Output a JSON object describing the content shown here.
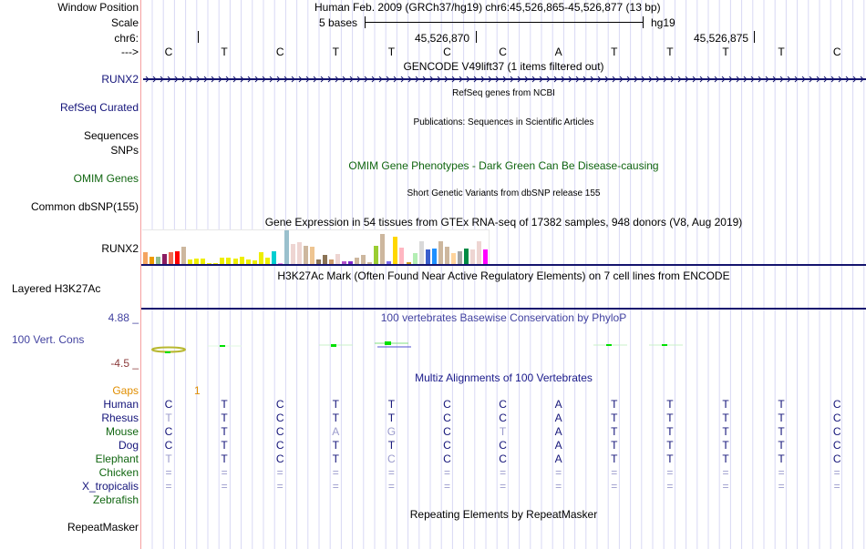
{
  "header": {
    "window_position_label": "Window Position",
    "window_position_value": "Human Feb. 2009 (GRCh37/hg19)   chr6:45,526,865-45,526,877 (13 bp)",
    "scale_label": "Scale",
    "scale_text": "5 bases",
    "scale_assembly": "hg19",
    "chrom_label": "chr6:",
    "coord_ticks": [
      "45,526,870",
      "45,526,875"
    ],
    "strand_label": "--->",
    "bases": [
      "C",
      "T",
      "C",
      "T",
      "T",
      "C",
      "C",
      "A",
      "T",
      "T",
      "T",
      "T",
      "C"
    ]
  },
  "tracks": {
    "gencode": {
      "title": "GENCODE V49lift37 (1 items filtered out)",
      "gene_label": "RUNX2"
    },
    "refseq": {
      "label": "RefSeq Curated",
      "title": "RefSeq genes from NCBI"
    },
    "publications": {
      "label_line1": "Sequences",
      "title": "Publications: Sequences in Scientific Articles"
    },
    "snps": {
      "label": "SNPs"
    },
    "omim": {
      "label": "OMIM Genes",
      "title": "OMIM Gene Phenotypes - Dark Green Can Be Disease-causing"
    },
    "dbsnp": {
      "label": "Common dbSNP(155)",
      "title": "Short Genetic Variants from dbSNP release 155"
    },
    "gtex": {
      "label": "RUNX2",
      "title": "Gene Expression in 54 tissues from GTEx RNA-seq of 17382 samples, 948 donors (V8, Aug 2019)",
      "bars": [
        {
          "color": "#f4a460",
          "v": 0.35
        },
        {
          "color": "#ee9a00",
          "v": 0.22
        },
        {
          "color": "#8fbc8f",
          "v": 0.22
        },
        {
          "color": "#8b1c62",
          "v": 0.3
        },
        {
          "color": "#ee6a50",
          "v": 0.35
        },
        {
          "color": "#ff0000",
          "v": 0.38
        },
        {
          "color": "#cdb79e",
          "v": 0.5
        },
        {
          "color": "#eeee00",
          "v": 0.14
        },
        {
          "color": "#eeee00",
          "v": 0.17
        },
        {
          "color": "#eeee00",
          "v": 0.17
        },
        {
          "color": "#eeee00",
          "v": 0.04
        },
        {
          "color": "#eeee00",
          "v": 0.04
        },
        {
          "color": "#eeee00",
          "v": 0.19
        },
        {
          "color": "#eeee00",
          "v": 0.19
        },
        {
          "color": "#eeee00",
          "v": 0.17
        },
        {
          "color": "#eeee00",
          "v": 0.22
        },
        {
          "color": "#eeee00",
          "v": 0.14
        },
        {
          "color": "#eeee00",
          "v": 0.11
        },
        {
          "color": "#eeee00",
          "v": 0.36
        },
        {
          "color": "#eeee00",
          "v": 0.19
        },
        {
          "color": "#00ced1",
          "v": 0.38
        },
        {
          "color": "#ee82ee",
          "v": 0.03
        },
        {
          "color": "#9ac0cd",
          "v": 1.0
        },
        {
          "color": "#eed5d2",
          "v": 0.6
        },
        {
          "color": "#eed5d2",
          "v": 0.65
        },
        {
          "color": "#cdb79e",
          "v": 0.54
        },
        {
          "color": "#eec591",
          "v": 0.52
        },
        {
          "color": "#8b7355",
          "v": 0.14
        },
        {
          "color": "#8b7355",
          "v": 0.26
        },
        {
          "color": "#cd9b6a",
          "v": 0.14
        },
        {
          "color": "#eed5d2",
          "v": 0.29
        },
        {
          "color": "#b452cd",
          "v": 0.08
        },
        {
          "color": "#7d26cd",
          "v": 0.08
        },
        {
          "color": "#cdb79e",
          "v": 0.19
        },
        {
          "color": "#cdb79e",
          "v": 0.27
        },
        {
          "color": "#cdb79e",
          "v": 0.05
        },
        {
          "color": "#9acd32",
          "v": 0.54
        },
        {
          "color": "#cdb79e",
          "v": 0.89
        },
        {
          "color": "#7a67ee",
          "v": 0.08
        },
        {
          "color": "#ffd700",
          "v": 0.81
        },
        {
          "color": "#ffb6c1",
          "v": 0.48
        },
        {
          "color": "#cd9b1d",
          "v": 0.05
        },
        {
          "color": "#b4eeb4",
          "v": 0.33
        },
        {
          "color": "#d9d9d9",
          "v": 0.68
        },
        {
          "color": "#3a5fcd",
          "v": 0.44
        },
        {
          "color": "#1e90ff",
          "v": 0.46
        },
        {
          "color": "#cdb79e",
          "v": 0.68
        },
        {
          "color": "#cdb79e",
          "v": 0.51
        },
        {
          "color": "#ffd39b",
          "v": 0.33
        },
        {
          "color": "#a6a6a6",
          "v": 0.38
        },
        {
          "color": "#008b45",
          "v": 0.45
        },
        {
          "color": "#eed5d2",
          "v": 0.43
        },
        {
          "color": "#eed5d2",
          "v": 0.68
        },
        {
          "color": "#ff00ff",
          "v": 0.43
        }
      ]
    },
    "h3k27ac": {
      "label": "Layered H3K27Ac",
      "title": "H3K27Ac Mark (Often Found Near Active Regulatory Elements) on 7 cell lines from ENCODE"
    },
    "cons": {
      "label": "100 Vert. Cons",
      "ymax": "4.88 _",
      "ymin": "-4.5 _",
      "title": "100 vertebrates Basewise Conservation by PhyloP"
    },
    "multiz": {
      "title": "Multiz Alignments of 100 Vertebrates",
      "gaps_label": "Gaps",
      "gaps_value": "1",
      "species": [
        {
          "name": "Human",
          "color": "navy",
          "seq": [
            "C",
            "T",
            "C",
            "T",
            "T",
            "C",
            "C",
            "A",
            "T",
            "T",
            "T",
            "T",
            "C"
          ]
        },
        {
          "name": "Rhesus",
          "color": "navy",
          "seq": [
            "T",
            "T",
            "C",
            "T",
            "T",
            "C",
            "C",
            "A",
            "T",
            "T",
            "T",
            "T",
            "C"
          ]
        },
        {
          "name": "Mouse",
          "color": "green",
          "seq": [
            "C",
            "T",
            "C",
            "A",
            "G",
            "C",
            "T",
            "A",
            "T",
            "T",
            "T",
            "T",
            "C"
          ]
        },
        {
          "name": "Dog",
          "color": "navy",
          "seq": [
            "C",
            "T",
            "C",
            "T",
            "T",
            "C",
            "C",
            "A",
            "T",
            "T",
            "T",
            "T",
            "C"
          ]
        },
        {
          "name": "Elephant",
          "color": "green",
          "seq": [
            "T",
            "T",
            "C",
            "T",
            "C",
            "C",
            "C",
            "A",
            "T",
            "T",
            "T",
            "T",
            "C"
          ]
        },
        {
          "name": "Chicken",
          "color": "green",
          "seq": [
            "=",
            "=",
            "=",
            "=",
            "=",
            "=",
            "=",
            "=",
            "=",
            "=",
            "=",
            "=",
            "="
          ]
        },
        {
          "name": "X_tropicalis",
          "color": "navy",
          "seq": [
            "=",
            "=",
            "=",
            "=",
            "=",
            "=",
            "=",
            "=",
            "=",
            "=",
            "=",
            "=",
            "="
          ]
        },
        {
          "name": "Zebrafish",
          "color": "green",
          "seq": [
            "",
            "",
            "",
            "",
            "",
            "",
            "",
            "",
            "",
            "",
            "",
            "",
            ""
          ]
        }
      ]
    },
    "repeatmasker": {
      "label": "RepeatMasker",
      "title": "Repeating Elements by RepeatMasker"
    }
  }
}
